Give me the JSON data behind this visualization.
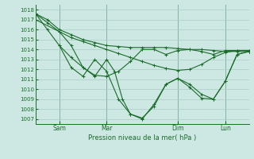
{
  "background_color": "#cde8e2",
  "grid_color": "#aaccc5",
  "line_color": "#1a6b2a",
  "xlabel": "Pression niveau de la mer( hPa )",
  "ylim": [
    1006.5,
    1018.5
  ],
  "yticks": [
    1007,
    1008,
    1009,
    1010,
    1011,
    1012,
    1013,
    1014,
    1015,
    1016,
    1017,
    1018
  ],
  "x_tick_labels": [
    "Sam",
    "Mar",
    "Dim",
    "Lun"
  ],
  "x_tick_positions": [
    12,
    36,
    72,
    96
  ],
  "xlim": [
    0,
    108
  ],
  "series1_x": [
    0,
    6,
    12,
    18,
    24,
    30,
    36,
    42,
    48,
    54,
    60,
    66,
    72,
    78,
    84,
    90,
    96,
    102,
    108
  ],
  "series1_y": [
    1017.6,
    1017.0,
    1016.0,
    1015.5,
    1015.0,
    1014.7,
    1014.4,
    1014.3,
    1014.2,
    1014.2,
    1014.2,
    1014.2,
    1014.1,
    1014.0,
    1014.0,
    1013.9,
    1013.8,
    1013.8,
    1013.8
  ],
  "series2_x": [
    0,
    6,
    12,
    18,
    24,
    30,
    36,
    42,
    48,
    54,
    60,
    66,
    72,
    78,
    84,
    90,
    96,
    102,
    108
  ],
  "series2_y": [
    1017.6,
    1016.7,
    1015.8,
    1015.2,
    1014.8,
    1014.4,
    1014.0,
    1013.6,
    1013.2,
    1012.8,
    1012.4,
    1012.1,
    1011.9,
    1012.0,
    1012.5,
    1013.2,
    1013.7,
    1013.9,
    1013.9
  ],
  "series3_x": [
    0,
    6,
    12,
    18,
    24,
    30,
    36,
    42,
    48,
    54,
    60,
    66,
    72,
    78,
    84,
    90,
    96,
    102,
    108
  ],
  "series3_y": [
    1017.6,
    1016.0,
    1014.4,
    1013.2,
    1012.2,
    1011.4,
    1011.3,
    1011.8,
    1012.8,
    1014.0,
    1014.0,
    1013.5,
    1013.9,
    1014.0,
    1013.8,
    1013.5,
    1013.9,
    1013.9,
    1013.9
  ],
  "series4_x": [
    0,
    12,
    18,
    24,
    30,
    36,
    40,
    44,
    48,
    54,
    60,
    66,
    72,
    78,
    84,
    90,
    96,
    102,
    108
  ],
  "series4_y": [
    1017.0,
    1015.8,
    1014.4,
    1012.2,
    1011.3,
    1013.0,
    1011.8,
    1009.0,
    1007.5,
    1007.0,
    1008.5,
    1010.5,
    1011.1,
    1010.5,
    1009.5,
    1009.0,
    1010.8,
    1013.5,
    1013.8
  ],
  "series5_x": [
    12,
    18,
    24,
    30,
    36,
    42,
    48,
    54,
    60,
    66,
    72,
    78,
    84,
    90,
    96,
    102,
    108
  ],
  "series5_y": [
    1014.4,
    1012.2,
    1011.3,
    1013.0,
    1011.8,
    1009.0,
    1007.5,
    1007.1,
    1008.3,
    1010.5,
    1011.1,
    1010.2,
    1009.1,
    1009.0,
    1010.8,
    1013.5,
    1013.8
  ]
}
